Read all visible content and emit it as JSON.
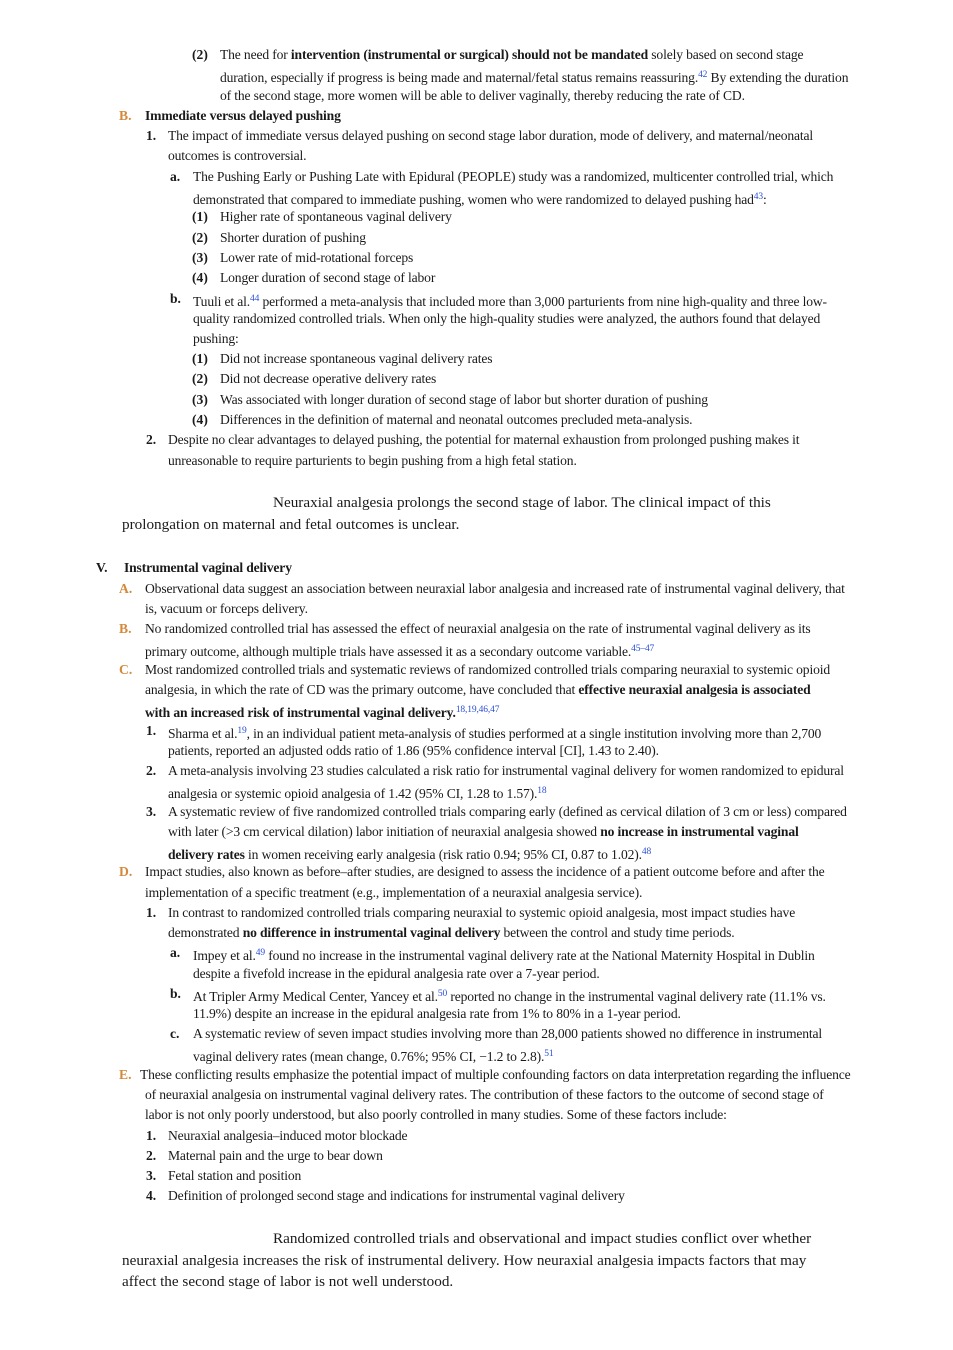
{
  "s1": {
    "m2": "(2)",
    "l1a": "The need for ",
    "l1b": "intervention (instrumental or surgical) should not be mandated",
    "l1c": " solely based on second stage",
    "l2a": "duration, especially if progress is being made and maternal/fetal status remains reassuring.",
    "l2sup": "42",
    "l2b": " By extending the duration",
    "l3": "of the second stage, more women will be able to deliver vaginally, thereby reducing the rate of CD."
  },
  "sB": {
    "m": "B.",
    "heading": "Immediate versus delayed pushing",
    "m1": "1.",
    "p1a": "The impact of immediate versus delayed pushing on second stage labor duration, mode of delivery, and maternal/neonatal",
    "p1b": "outcomes is controversial.",
    "ma": "a.",
    "pa1": "The Pushing Early or Pushing Late with Epidural (PEOPLE) study was a randomized, multicenter controlled trial, which",
    "pa2a": "demonstrated that compared to immediate pushing, women who were randomized to delayed pushing had",
    "pa2sup": "43",
    "pa2b": ":",
    "a_items": [
      {
        "m": "(1)",
        "t": "Higher rate of spontaneous vaginal delivery"
      },
      {
        "m": "(2)",
        "t": "Shorter duration of pushing"
      },
      {
        "m": "(3)",
        "t": "Lower rate of mid-rotational forceps"
      },
      {
        "m": "(4)",
        "t": "Longer duration of second stage of labor"
      }
    ],
    "mb": "b.",
    "pb1a": "Tuuli et al.",
    "pb1sup": "44",
    "pb1b": " performed a meta-analysis that included more than 3,000 parturients from nine high-quality and three low-",
    "pb2": "quality randomized controlled trials. When only the high-quality studies were analyzed, the authors found that delayed",
    "pb3": "pushing:",
    "b_items": [
      {
        "m": "(1)",
        "t": "Did not increase spontaneous vaginal delivery rates"
      },
      {
        "m": "(2)",
        "t": "Did not decrease operative delivery rates"
      },
      {
        "m": "(3)",
        "t": "Was associated with longer duration of second stage of labor but shorter duration of pushing"
      },
      {
        "m": "(4)",
        "t": "Differences in the definition of maternal and neonatal outcomes precluded meta-analysis."
      }
    ],
    "m2": "2.",
    "p2a": "Despite no clear advantages to delayed pushing, the potential for maternal exhaustion from prolonged pushing makes it",
    "p2b": "unreasonable to require parturients to begin pushing from a high fetal station."
  },
  "key1": {
    "l1": "Neuraxial analgesia prolongs the second stage of labor. The clinical impact of this",
    "l2": "prolongation on maternal and fetal outcomes is unclear."
  },
  "sV": {
    "m": "V.",
    "heading": "Instrumental vaginal delivery",
    "mA": "A.",
    "A1": "Observational data suggest an association between neuraxial labor analgesia and increased rate of instrumental vaginal delivery, that",
    "A2": "is, vacuum or forceps delivery.",
    "mB": "B.",
    "B1": "No randomized controlled trial has assessed the effect of neuraxial analgesia on the rate of instrumental vaginal delivery as its",
    "B2a": "primary outcome, although multiple trials have assessed it as a secondary outcome variable.",
    "B2sup": "45–47",
    "mC": "C.",
    "C1": "Most randomized controlled trials and systematic reviews of randomized controlled trials comparing neuraxial to systemic opioid",
    "C2a": "analgesia, in which the rate of CD was the primary outcome, have concluded that ",
    "C2b": "effective neuraxial analgesia is associated",
    "C3a": "with an increased risk of instrumental vaginal delivery.",
    "C3sup": "18,19,46,47",
    "mC1": "1.",
    "C11a": "Sharma et al.",
    "C11sup": "19",
    "C11b": ", in an individual patient meta-analysis of studies performed at a single institution involving more than 2,700",
    "C12": "patients, reported an adjusted odds ratio of 1.86 (95% confidence interval [CI], 1.43 to 2.40).",
    "mC2": "2.",
    "C21": "A meta-analysis involving 23 studies calculated a risk ratio for instrumental vaginal delivery for women randomized to epidural",
    "C22a": "analgesia or systemic opioid analgesia of 1.42 (95% CI, 1.28 to 1.57).",
    "C22sup": "18",
    "mC3": "3.",
    "C31": "A systematic review of five randomized controlled trials comparing early (defined as cervical dilation of 3 cm or less) compared",
    "C32a": "with later (>3 cm cervical dilation) labor initiation of neuraxial analgesia showed ",
    "C32b": "no increase in instrumental vaginal",
    "C33a": "delivery rates",
    "C33b": " in women receiving early analgesia (risk ratio 0.94; 95% CI, 0.87 to 1.02).",
    "C33sup": "48",
    "mD": "D.",
    "D1": "Impact studies, also known as before–after studies, are designed to assess the incidence of a patient outcome before and after the",
    "D2": "implementation of a specific treatment (e.g., implementation of a neuraxial analgesia service).",
    "mD1": "1.",
    "D11": "In contrast to randomized controlled trials comparing neuraxial to systemic opioid analgesia, most impact studies have",
    "D12a": "demonstrated ",
    "D12b": "no difference in instrumental vaginal delivery",
    "D12c": " between the control and study time periods.",
    "mDa": "a.",
    "Da1a": "Impey et al.",
    "Da1sup": "49",
    "Da1b": " found no increase in the instrumental vaginal delivery rate at the National Maternity Hospital in Dublin",
    "Da2": "despite a fivefold increase in the epidural analgesia rate over a 7-year period.",
    "mDb": "b.",
    "Db1a": "At Tripler Army Medical Center, Yancey et al.",
    "Db1sup": "50",
    "Db1b": " reported no change in the instrumental vaginal delivery rate (11.1% vs.",
    "Db2": "11.9%) despite an increase in the epidural analgesia rate from 1% to 80% in a 1-year period.",
    "mDc": "c.",
    "Dc1": "A systematic review of seven impact studies involving more than 28,000 patients showed no difference in instrumental",
    "Dc2a": "vaginal delivery rates (mean change, 0.76%; 95% CI, −1.2 to 2.8).",
    "Dc2sup": "51",
    "mE": "E.",
    "E1": "These conflicting results emphasize the potential impact of multiple confounding factors on data interpretation regarding the influence",
    "E2": "of neuraxial analgesia on instrumental vaginal delivery rates. The contribution of these factors to the outcome of second stage of",
    "E3": "labor is not only poorly understood, but also poorly controlled in many studies. Some of these factors include:",
    "E_items": [
      {
        "m": "1.",
        "t": "Neuraxial analgesia–induced motor blockade"
      },
      {
        "m": "2.",
        "t": "Maternal pain and the urge to bear down"
      },
      {
        "m": "3.",
        "t": "Fetal station and position"
      },
      {
        "m": "4.",
        "t": "Definition of prolonged second stage and indications for instrumental vaginal delivery"
      }
    ]
  },
  "key2": {
    "l1": "Randomized controlled trials and observational and impact studies conflict over whether",
    "l2": "neuraxial analgesia increases the risk of instrumental delivery. How neuraxial analgesia impacts factors that may",
    "l3": "affect the second stage of labor is not well understood."
  }
}
